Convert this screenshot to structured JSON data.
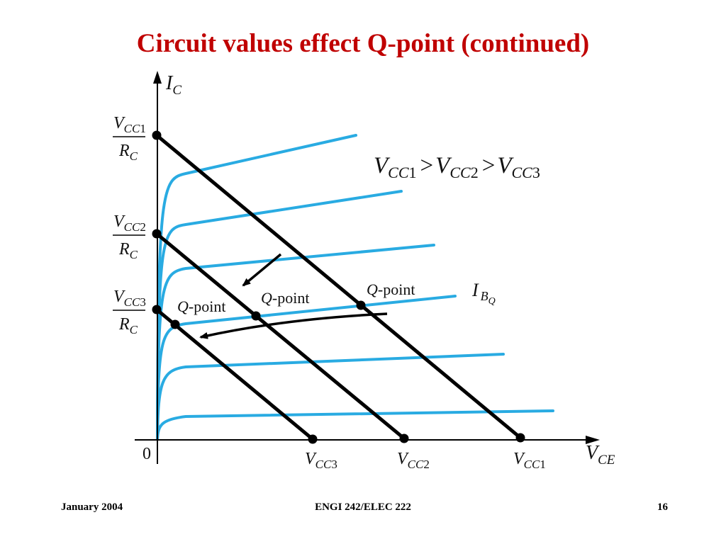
{
  "slide": {
    "title": "Circuit values effect Q-point (continued)",
    "footer": {
      "date": "January 2004",
      "course": "ENGI 242/ELEC 222",
      "page": "16"
    }
  },
  "diagram": {
    "axes": {
      "y_label": {
        "main": "I",
        "sub": "C"
      },
      "x_label": {
        "main": "V",
        "sub": "CE"
      },
      "origin": "0"
    },
    "condition": {
      "v": "V",
      "sub": "CC",
      "op": ">",
      "indices": [
        "1",
        "2",
        "3"
      ]
    },
    "ib_label": {
      "main": "I",
      "sub": "B",
      "subsub": "Q"
    },
    "intercepts_y": [
      {
        "num": "V",
        "sub": "CC",
        "index": "1",
        "den": "R",
        "den_sub": "C"
      },
      {
        "num": "V",
        "sub": "CC",
        "index": "2",
        "den": "R",
        "den_sub": "C"
      },
      {
        "num": "V",
        "sub": "CC",
        "index": "3",
        "den": "R",
        "den_sub": "C"
      }
    ],
    "intercepts_x": [
      {
        "v": "V",
        "sub": "CC",
        "index": "3"
      },
      {
        "v": "V",
        "sub": "CC",
        "index": "2"
      },
      {
        "v": "V",
        "sub": "CC",
        "index": "1"
      }
    ],
    "qpoint_labels": [
      {
        "q": "Q",
        "rest": "-point"
      },
      {
        "q": "Q",
        "rest": "-point"
      },
      {
        "q": "Q",
        "rest": "-point"
      }
    ],
    "colors": {
      "curve": "#29abe2",
      "line": "#000000",
      "title": "#c00000"
    }
  }
}
